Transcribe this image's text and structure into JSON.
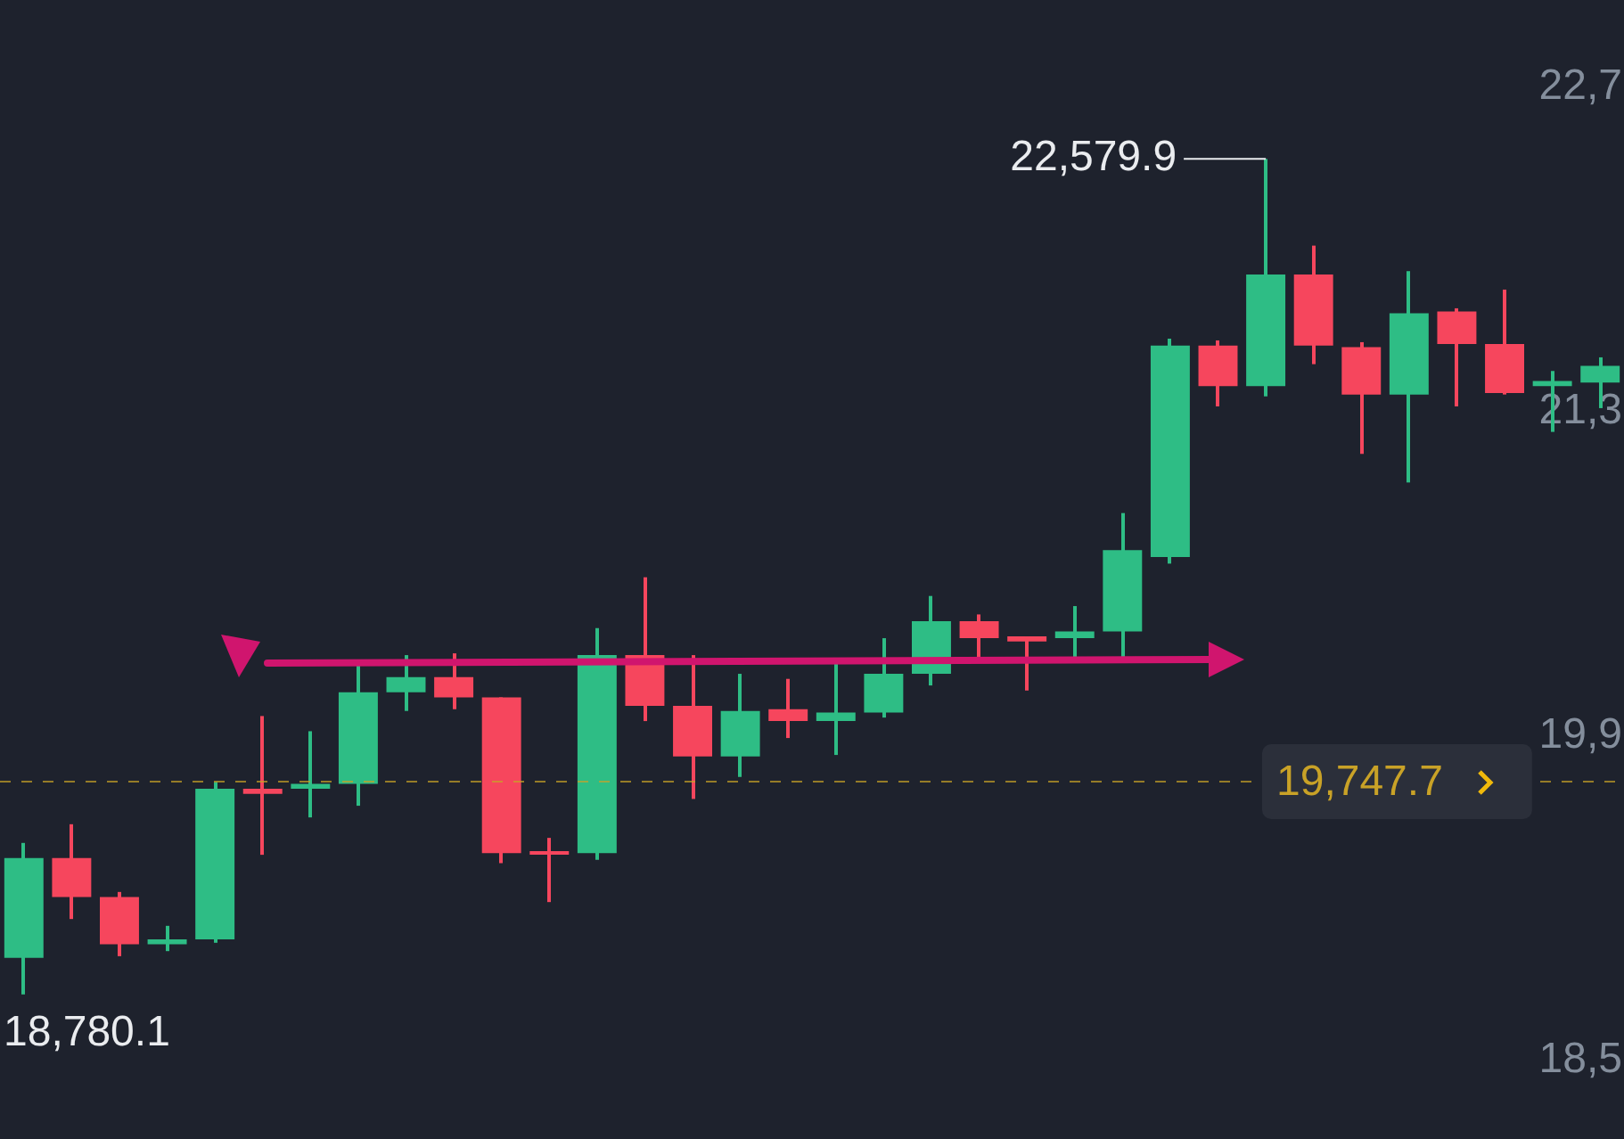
{
  "chart_data": {
    "type": "candlestick",
    "categories": [
      null,
      null,
      null,
      null,
      null,
      null,
      null,
      null,
      null,
      null,
      null,
      null,
      null,
      null,
      null,
      null,
      null,
      null,
      null,
      null,
      null,
      null,
      null,
      null,
      null,
      null,
      null,
      null,
      null,
      null,
      null,
      null,
      null,
      null
    ],
    "ohlc": [
      [
        18946,
        19469,
        18780.1,
        19400
      ],
      [
        19400,
        19554,
        19123,
        19223
      ],
      [
        19223,
        19246,
        18954,
        19008
      ],
      [
        19008,
        19092,
        18977,
        19031
      ],
      [
        19031,
        19746,
        19015,
        19715
      ],
      [
        19715,
        20046,
        19415,
        19692
      ],
      [
        19715,
        19977,
        19585,
        19738
      ],
      [
        19738,
        20277,
        19638,
        20154
      ],
      [
        20154,
        20323,
        20069,
        20223
      ],
      [
        20223,
        20331,
        20077,
        20131
      ],
      [
        20131,
        20131,
        19377,
        19423
      ],
      [
        19431,
        19492,
        19200,
        19415
      ],
      [
        19423,
        20446,
        19392,
        20323
      ],
      [
        20323,
        20677,
        20023,
        20092
      ],
      [
        20092,
        20323,
        19669,
        19862
      ],
      [
        19862,
        20238,
        19769,
        20069
      ],
      [
        20077,
        20215,
        19946,
        20023
      ],
      [
        20023,
        20292,
        19869,
        20062
      ],
      [
        20062,
        20400,
        20039,
        20238
      ],
      [
        20238,
        20592,
        20185,
        20477
      ],
      [
        20477,
        20508,
        20292,
        20400
      ],
      [
        20408,
        20408,
        20162,
        20385
      ],
      [
        20400,
        20546,
        20308,
        20431
      ],
      [
        20431,
        20969,
        20292,
        20800
      ],
      [
        20769,
        21762,
        20739,
        21731
      ],
      [
        21731,
        21754,
        21454,
        21546
      ],
      [
        21546,
        22579.9,
        21500,
        22054
      ],
      [
        22054,
        22185,
        21646,
        21731
      ],
      [
        21723,
        21746,
        21238,
        21508
      ],
      [
        21508,
        22069,
        21108,
        21877
      ],
      [
        21885,
        21900,
        21454,
        21738
      ],
      [
        21738,
        21985,
        21508,
        21515
      ],
      [
        21546,
        21615,
        21338,
        21569
      ],
      [
        21562,
        21677,
        21446,
        21638
      ]
    ],
    "colors": [
      "#2ebd85",
      "#f6465d",
      "#f6465d",
      "#2ebd85",
      "#2ebd85",
      "#f6465d",
      "#2ebd85",
      "#2ebd85",
      "#2ebd85",
      "#f6465d",
      "#f6465d",
      "#f6465d",
      "#2ebd85",
      "#f6465d",
      "#f6465d",
      "#2ebd85",
      "#f6465d",
      "#2ebd85",
      "#2ebd85",
      "#2ebd85",
      "#f6465d",
      "#f6465d",
      "#2ebd85",
      "#2ebd85",
      "#2ebd85",
      "#f6465d",
      "#2ebd85",
      "#f6465d",
      "#f6465d",
      "#2ebd85",
      "#f6465d",
      "#f6465d",
      "#2ebd85",
      "#2ebd85"
    ],
    "legend": false,
    "ref_lines": [
      {
        "axis": "y",
        "value": 19747.7,
        "label": "19,747.7",
        "color": "#c9a227",
        "line_style": "dashed"
      }
    ],
    "annotations": [
      "22,579.9",
      "18,780.1",
      "22,7",
      "21,3",
      "19,9",
      "18,5"
    ]
  }
}
